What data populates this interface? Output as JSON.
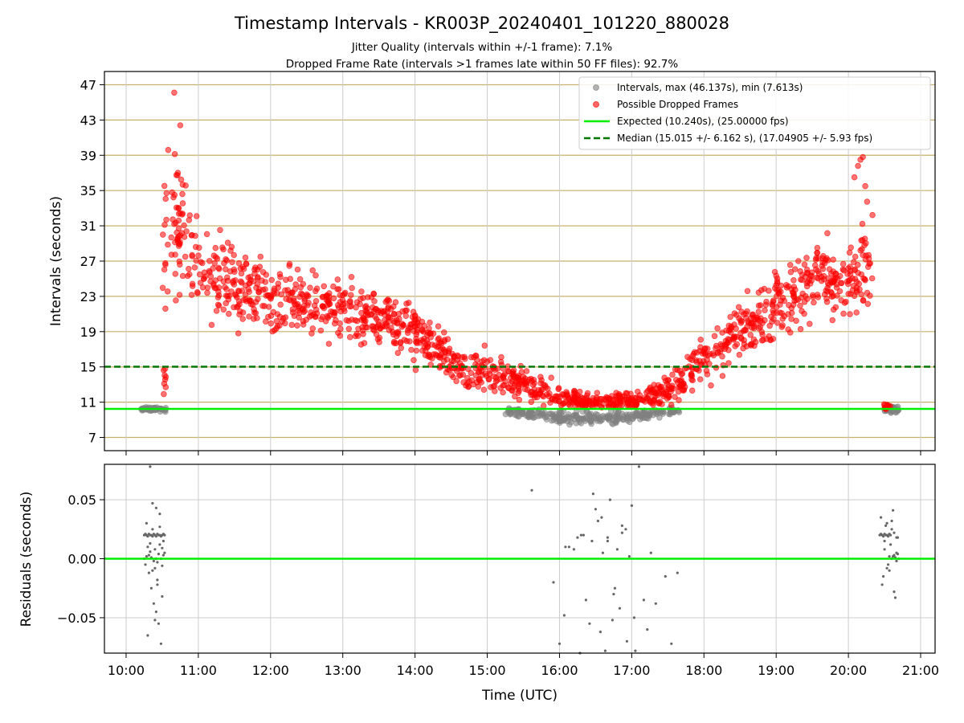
{
  "title": "Timestamp Intervals - KR003P_20240401_101220_880028",
  "subtitle_1": "Jitter Quality (intervals within +/-1 frame): 7.1%",
  "subtitle_2": "Dropped Frame Rate (intervals >1 frames late within 50 FF files): 92.7%",
  "colors": {
    "intervals": "#808080",
    "dropped": "#ff0000",
    "expected": "#00ee00",
    "median": "#007700",
    "grid_h": "#c8b06a",
    "grid_v": "#cccccc"
  },
  "chart_data": [
    {
      "type": "scatter",
      "xlabel": "Time (UTC)",
      "ylabel": "Intervals (seconds)",
      "xlim": [
        "09:42",
        "21:12"
      ],
      "ylim": [
        5.5,
        48.5
      ],
      "yticks": [
        7,
        11,
        15,
        19,
        23,
        27,
        31,
        35,
        39,
        43,
        47
      ],
      "xticks": [
        "10:00",
        "11:00",
        "12:00",
        "13:00",
        "14:00",
        "15:00",
        "16:00",
        "17:00",
        "18:00",
        "19:00",
        "20:00",
        "21:00"
      ],
      "legend_position": "top-right",
      "legend": [
        "Intervals, max (46.137s), min (7.613s)",
        "Possible Dropped Frames",
        "Expected (10.240s), (25.00000 fps)",
        "Median (15.015 +/- 6.162 s), (17.04905 +/- 5.93 fps)"
      ],
      "expected": 10.24,
      "median": 15.015,
      "trend_dropped": {
        "x": [
          "10:30",
          "10:40",
          "10:50",
          "11:00",
          "11:15",
          "11:30",
          "12:00",
          "12:30",
          "13:00",
          "13:30",
          "14:00",
          "14:20",
          "14:30",
          "14:45",
          "15:00",
          "15:20",
          "15:40",
          "16:00",
          "16:30",
          "17:00",
          "17:15",
          "17:30",
          "17:45",
          "18:00",
          "18:30",
          "19:00",
          "19:20",
          "19:40",
          "20:00",
          "20:10",
          "20:15",
          "20:20"
        ],
        "y": [
          28,
          31,
          29,
          26,
          25,
          24.5,
          23,
          22,
          21.5,
          20.5,
          19,
          17.5,
          15.5,
          15,
          14.5,
          13.5,
          12.5,
          11.5,
          11,
          11,
          11.5,
          12.5,
          14,
          16,
          19,
          22,
          24,
          25,
          24,
          26,
          29,
          28
        ],
        "spread": [
          8,
          7,
          6,
          5,
          4.5,
          4,
          3.5,
          3.5,
          3.5,
          3,
          3,
          2.5,
          2.5,
          2.5,
          2,
          1.8,
          1.5,
          1.2,
          1,
          1,
          1.2,
          1.5,
          2,
          2.5,
          3,
          3.5,
          4,
          4,
          4,
          5,
          6,
          6
        ]
      },
      "trend_intervals": {
        "x": [
          "15:15",
          "15:40",
          "16:00",
          "16:20",
          "16:40",
          "17:00",
          "17:20",
          "17:40"
        ],
        "y": [
          10,
          9.6,
          9.3,
          9.2,
          9.2,
          9.4,
          9.7,
          10.1
        ],
        "spread": [
          0.4,
          0.5,
          0.6,
          0.7,
          0.7,
          0.6,
          0.5,
          0.3
        ]
      },
      "cluster_intervals": [
        {
          "x_from": "10:12",
          "x_to": "10:28",
          "y": 10.24,
          "spread": 0.2,
          "count": 40
        },
        {
          "x_from": "10:28",
          "x_to": "10:33",
          "y": 10.2,
          "spread": 0.3,
          "count": 12
        },
        {
          "x_from": "20:30",
          "x_to": "20:42",
          "y": 10.2,
          "spread": 0.5,
          "count": 40
        }
      ],
      "cluster_dropped": [
        {
          "x_from": "10:31",
          "x_to": "10:33",
          "y": 14.0,
          "spread": 2.5,
          "count": 8
        },
        {
          "x_from": "20:28",
          "x_to": "20:35",
          "y": 10.5,
          "spread": 0.4,
          "count": 12
        }
      ],
      "outliers_dropped": {
        "x": [
          "10:40",
          "10:45",
          "10:35",
          "10:43",
          "20:10",
          "20:12",
          "20:05",
          "20:14",
          "20:08"
        ],
        "y": [
          46.1,
          42.4,
          39.6,
          37,
          38.5,
          38.8,
          36.5,
          35.5,
          37.8
        ]
      }
    },
    {
      "type": "scatter",
      "xlabel": "Time (UTC)",
      "ylabel": "Residuals (seconds)",
      "ylim": [
        -0.08,
        0.08
      ],
      "yticks": [
        -0.05,
        0.0,
        0.05
      ],
      "ytick_labels": [
        "−0.05",
        "0.00",
        "0.05"
      ],
      "zero_line": 0.0,
      "points": {
        "x": [
          "10:15",
          "10:16",
          "10:17",
          "10:18",
          "10:19",
          "10:20",
          "10:21",
          "10:22",
          "10:23",
          "10:24",
          "10:25",
          "10:26",
          "10:27",
          "10:28",
          "10:29",
          "10:30",
          "10:31",
          "10:32",
          "10:15",
          "10:17",
          "10:19",
          "10:21",
          "10:23",
          "10:25",
          "10:27",
          "10:29",
          "10:31",
          "10:16",
          "10:18",
          "10:20",
          "10:22",
          "10:24",
          "10:26",
          "10:28",
          "10:30",
          "10:32",
          "10:20",
          "10:22",
          "10:25",
          "10:28",
          "10:30",
          "10:21",
          "10:24",
          "10:27",
          "10:18",
          "10:23",
          "10:26",
          "10:29",
          "10:31",
          "10:19",
          "10:22",
          "10:26",
          "10:30",
          "10:20",
          "10:24",
          "10:28",
          "10:17",
          "10:25",
          "15:37",
          "15:55",
          "16:00",
          "16:04",
          "16:08",
          "16:12",
          "16:17",
          "16:20",
          "16:22",
          "16:25",
          "16:27",
          "16:30",
          "16:32",
          "16:34",
          "16:36",
          "16:38",
          "16:40",
          "16:42",
          "16:44",
          "16:46",
          "16:48",
          "16:50",
          "16:52",
          "16:55",
          "16:58",
          "17:00",
          "17:03",
          "17:06",
          "17:10",
          "17:13",
          "17:16",
          "17:20",
          "17:28",
          "17:33",
          "17:38",
          "16:15",
          "16:35",
          "16:45",
          "16:05",
          "16:28",
          "16:52",
          "17:02",
          "16:18",
          "16:40",
          "16:56",
          "20:26",
          "20:27",
          "20:28",
          "20:29",
          "20:30",
          "20:31",
          "20:32",
          "20:33",
          "20:34",
          "20:35",
          "20:36",
          "20:37",
          "20:38",
          "20:39",
          "20:40",
          "20:41",
          "20:42",
          "20:27",
          "20:29",
          "20:31",
          "20:33",
          "20:35",
          "20:37",
          "20:39",
          "20:41",
          "20:28",
          "20:30",
          "20:32",
          "20:34",
          "20:36",
          "20:38",
          "20:40",
          "20:30",
          "20:34",
          "20:38",
          "20:32",
          "20:36",
          "20:40"
        ],
        "y": [
          0.02,
          0.021,
          0.02,
          0.019,
          0.021,
          0.02,
          0.02,
          0.019,
          0.021,
          0.02,
          0.019,
          0.021,
          0.02,
          0.02,
          0.019,
          0.02,
          0.021,
          0.02,
          0.0,
          0.002,
          0.003,
          0.001,
          -0.002,
          0.0,
          0.004,
          0.0,
          0.003,
          -0.005,
          0.01,
          0.006,
          -0.01,
          0.008,
          -0.003,
          0.012,
          -0.006,
          0.005,
          0.078,
          0.047,
          0.043,
          0.038,
          -0.032,
          -0.025,
          -0.052,
          -0.055,
          -0.065,
          -0.038,
          -0.022,
          -0.072,
          0.015,
          -0.012,
          0.025,
          -0.018,
          0.009,
          0.013,
          -0.008,
          0.027,
          0.03,
          -0.045,
          0.058,
          -0.02,
          -0.072,
          -0.048,
          0.01,
          0.008,
          -0.08,
          0.02,
          -0.035,
          -0.055,
          0.015,
          0.042,
          0.032,
          -0.062,
          0.005,
          -0.078,
          0.018,
          0.05,
          -0.052,
          -0.025,
          0.008,
          -0.042,
          0.022,
          0.025,
          0.002,
          0.045,
          -0.078,
          0.078,
          -0.035,
          -0.06,
          0.005,
          -0.038,
          -0.015,
          -0.072,
          -0.012,
          0.018,
          0.035,
          -0.03,
          0.01,
          0.055,
          0.028,
          -0.05,
          0.02,
          0.015,
          -0.07,
          0.02,
          0.021,
          0.02,
          0.019,
          0.021,
          0.02,
          0.02,
          0.019,
          0.021,
          0.02,
          0.0,
          0.002,
          0.003,
          0.001,
          -0.002,
          0.004,
          0.0,
          0.035,
          -0.015,
          0.028,
          -0.005,
          0.012,
          0.041,
          -0.033,
          0.018,
          -0.022,
          0.008,
          0.03,
          -0.01,
          0.025,
          -0.028,
          0.005,
          0.015,
          0.002,
          0.022,
          -0.008,
          0.032,
          0.018
        ]
      }
    }
  ]
}
